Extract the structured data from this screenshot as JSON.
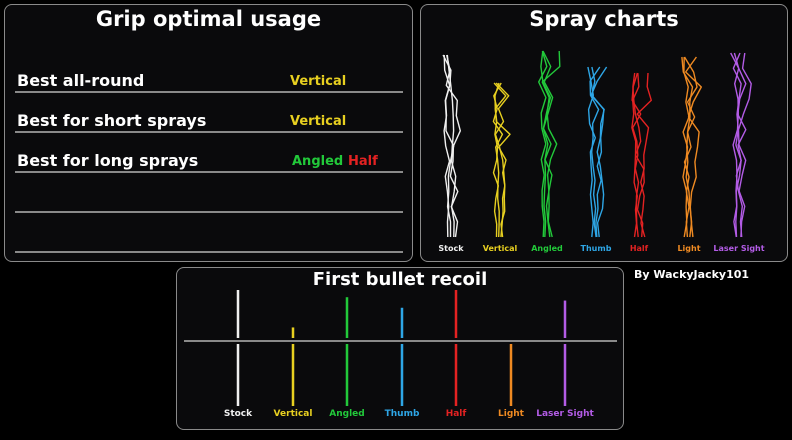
{
  "grip_usage": {
    "title": "Grip optimal usage",
    "rows": [
      {
        "label": "Best all-round",
        "values": [
          {
            "text": "Vertical",
            "color": "#e8d020"
          }
        ]
      },
      {
        "label": "Best for short sprays",
        "values": [
          {
            "text": "Vertical",
            "color": "#e8d020"
          }
        ]
      },
      {
        "label": "Best for long sprays",
        "values": [
          {
            "text": "Angled",
            "color": "#22c93a"
          },
          {
            "text": "Half",
            "color": "#e42222"
          }
        ]
      },
      {
        "label": "",
        "values": []
      },
      {
        "label": "",
        "values": []
      }
    ]
  },
  "spray_charts": {
    "title": "Spray charts",
    "grips": [
      {
        "name": "Stock",
        "color": "#f0f0f0"
      },
      {
        "name": "Vertical",
        "color": "#e8d020"
      },
      {
        "name": "Angled",
        "color": "#22c93a"
      },
      {
        "name": "Thumb",
        "color": "#2ea6e6"
      },
      {
        "name": "Half",
        "color": "#e42222"
      },
      {
        "name": "Light",
        "color": "#ef8a22"
      },
      {
        "name": "Laser Sight",
        "color": "#b35ce6"
      }
    ]
  },
  "credit": "By WackyJacky101",
  "recoil": {
    "title": "First bullet recoil",
    "grips": [
      {
        "name": "Stock",
        "color": "#f0f0f0",
        "up": 1.0,
        "down": 1.0
      },
      {
        "name": "Vertical",
        "color": "#e8d020",
        "up": 0.22,
        "down": 1.0
      },
      {
        "name": "Angled",
        "color": "#22c93a",
        "up": 0.85,
        "down": 1.0
      },
      {
        "name": "Thumb",
        "color": "#2ea6e6",
        "up": 0.63,
        "down": 1.0
      },
      {
        "name": "Half",
        "color": "#e42222",
        "up": 1.0,
        "down": 1.0
      },
      {
        "name": "Light",
        "color": "#ef8a22",
        "up": 0.0,
        "down": 1.0
      },
      {
        "name": "Laser Sight",
        "color": "#b35ce6",
        "up": 0.78,
        "down": 1.0
      }
    ]
  }
}
